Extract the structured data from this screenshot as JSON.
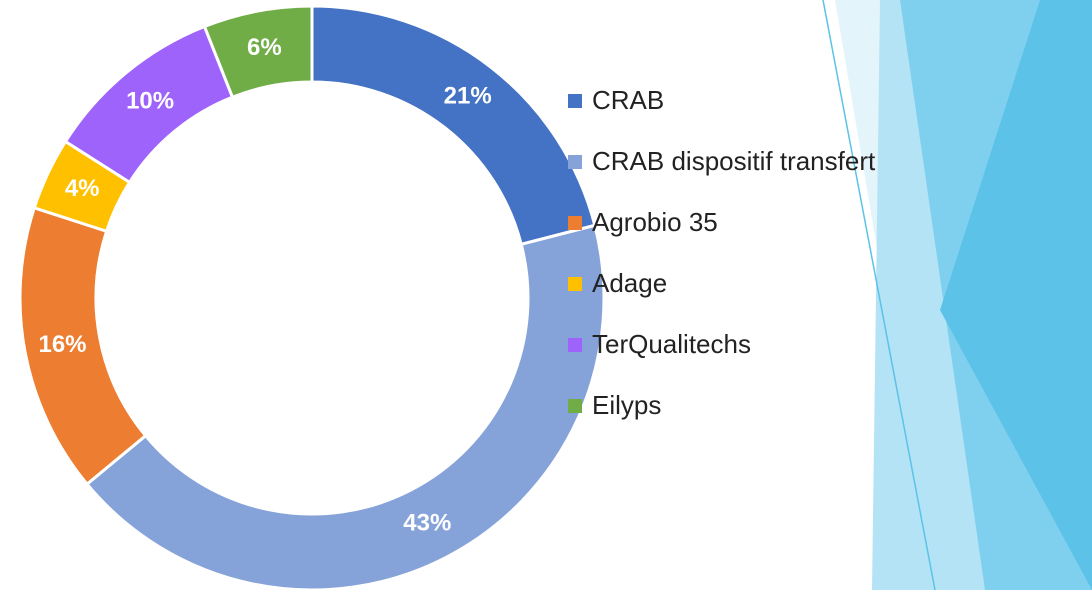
{
  "chart_data": {
    "type": "donut",
    "categories": [
      "CRAB",
      "CRAB dispositif transfert",
      "Agrobio 35",
      "Adage",
      "TerQualitechs",
      "Eilyps"
    ],
    "values": [
      21,
      43,
      16,
      4,
      10,
      6
    ],
    "value_labels": [
      "21%",
      "43%",
      "16%",
      "4%",
      "10%",
      "6%"
    ],
    "colors": [
      "#4472c4",
      "#86a3d9",
      "#ed7d31",
      "#ffc000",
      "#9d63fb",
      "#70ad47"
    ]
  }
}
